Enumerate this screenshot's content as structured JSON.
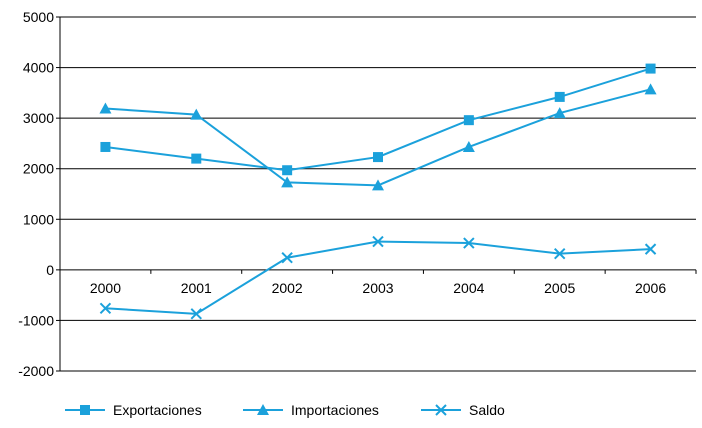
{
  "chart_data": {
    "type": "line",
    "title": "",
    "xlabel": "",
    "ylabel": "",
    "categories": [
      "2000",
      "2001",
      "2002",
      "2003",
      "2004",
      "2005",
      "2006"
    ],
    "ylim": [
      -2000,
      5000
    ],
    "yticks": [
      5000,
      4000,
      3000,
      2000,
      1000,
      0,
      -1000,
      -2000
    ],
    "grid": true,
    "legend_position": "bottom",
    "line_color": "#1BA1DB",
    "series": [
      {
        "name": "Exportaciones",
        "marker": "square",
        "values": [
          2430,
          2200,
          1970,
          2230,
          2960,
          3420,
          3980
        ]
      },
      {
        "name": "Importaciones",
        "marker": "triangle",
        "values": [
          3190,
          3070,
          1730,
          1670,
          2430,
          3100,
          3570
        ]
      },
      {
        "name": "Saldo",
        "marker": "x",
        "values": [
          -760,
          -870,
          240,
          560,
          530,
          320,
          410
        ]
      }
    ]
  }
}
